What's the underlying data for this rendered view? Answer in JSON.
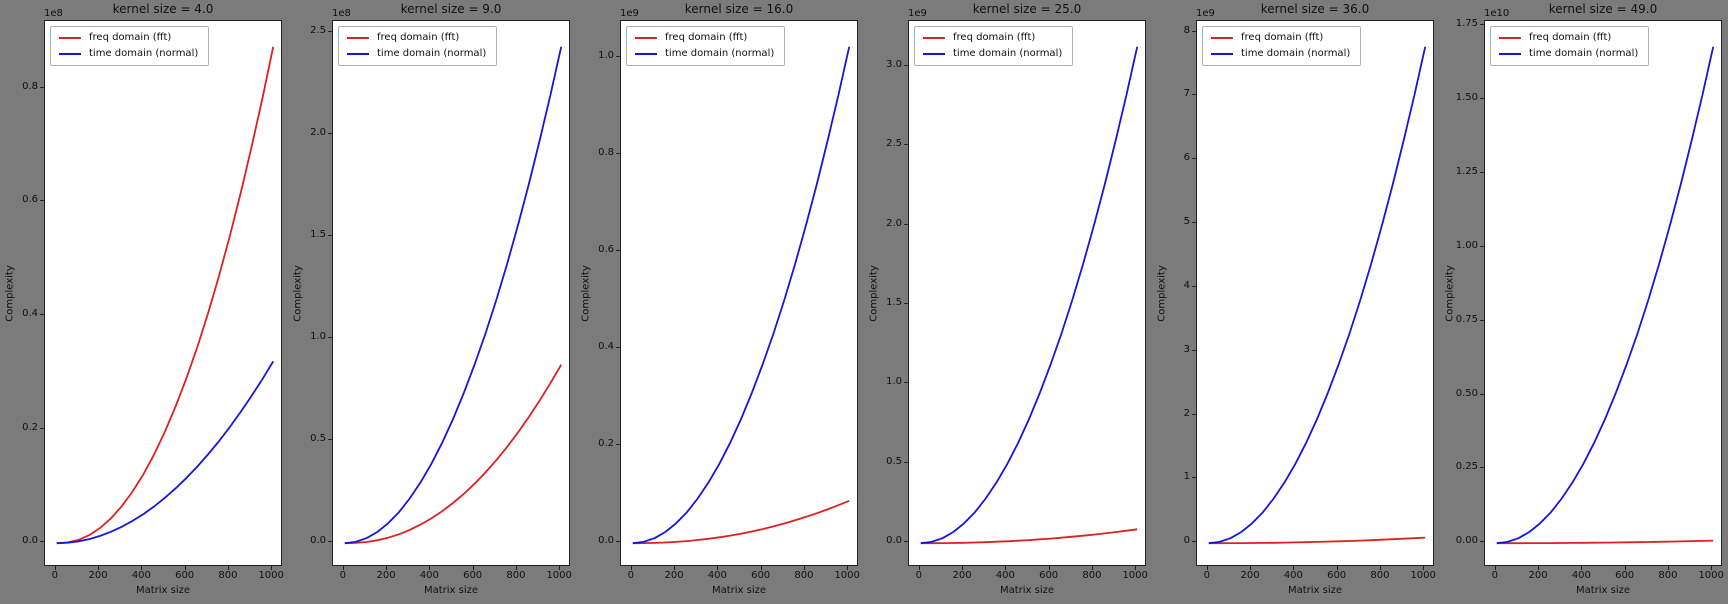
{
  "figure": {
    "background_color": "#7b7b7b",
    "plot_background_color": "#ffffff",
    "text_color": "#111111",
    "series_colors": {
      "fft": "#dd2020",
      "normal": "#1616dd"
    }
  },
  "chart_data": [
    {
      "type": "line",
      "kernel_size": "4.0",
      "title": "kernel size = 4.0",
      "xlabel": "Matrix size",
      "ylabel": "Complexity",
      "scale_label": "1e8",
      "legend_position": "upper left",
      "xticks": {
        "values": [
          0,
          200,
          400,
          600,
          800,
          1000
        ],
        "labels": [
          "0",
          "200",
          "400",
          "600",
          "800",
          "1000"
        ]
      },
      "yticks": {
        "values": [
          0,
          20000000,
          40000000,
          60000000,
          80000000
        ],
        "labels": [
          "0.0",
          "0.2",
          "0.4",
          "0.6",
          "0.8"
        ]
      },
      "x": [
        0,
        50,
        100,
        150,
        200,
        250,
        300,
        350,
        400,
        450,
        500,
        550,
        600,
        650,
        700,
        750,
        800,
        850,
        900,
        950,
        1000
      ],
      "series": [
        {
          "id": "fft",
          "name": "freq domain (fft)",
          "color": "#dd2020",
          "values": [
            0,
            124000,
            583000,
            1427000,
            2682000,
            4366000,
            6494000,
            9079000,
            12130000,
            15650000,
            19660000,
            24150000,
            29140000,
            34630000,
            40610000,
            47120000,
            54140000,
            61660000,
            69720000,
            78300000,
            87400000
          ]
        },
        {
          "id": "normal",
          "name": "time domain (normal)",
          "color": "#1616dd",
          "values": [
            0,
            80000,
            320000,
            720000,
            1280000,
            2000000,
            2880000,
            3920000,
            5120000,
            6480000,
            8000000,
            9680000,
            11520000,
            13520000,
            15680000,
            18000000,
            20480000,
            23120000,
            25920000,
            28880000,
            32000000
          ]
        }
      ]
    },
    {
      "type": "line",
      "kernel_size": "9.0",
      "title": "kernel size = 9.0",
      "xlabel": "Matrix size",
      "ylabel": "Complexity",
      "scale_label": "1e8",
      "legend_position": "upper left",
      "xticks": {
        "values": [
          0,
          200,
          400,
          600,
          800,
          1000
        ],
        "labels": [
          "0",
          "200",
          "400",
          "600",
          "800",
          "1000"
        ]
      },
      "yticks": {
        "values": [
          0,
          50000000,
          100000000,
          150000000,
          200000000,
          250000000
        ],
        "labels": [
          "0.0",
          "0.5",
          "1.0",
          "1.5",
          "2.0",
          "2.5"
        ]
      },
      "x": [
        0,
        50,
        100,
        150,
        200,
        250,
        300,
        350,
        400,
        450,
        500,
        550,
        600,
        650,
        700,
        750,
        800,
        850,
        900,
        950,
        1000
      ],
      "series": [
        {
          "id": "fft",
          "name": "freq domain (fft)",
          "color": "#dd2020",
          "values": [
            0,
            124000,
            583000,
            1427000,
            2682000,
            4366000,
            6494000,
            9079000,
            12130000,
            15650000,
            19660000,
            24150000,
            29140000,
            34630000,
            40610000,
            47120000,
            54140000,
            61660000,
            69720000,
            78300000,
            87400000
          ]
        },
        {
          "id": "normal",
          "name": "time domain (normal)",
          "color": "#1616dd",
          "values": [
            0,
            607500,
            2430000,
            5467500,
            9720000,
            15187500,
            21870000,
            29767500,
            38880000,
            49207500,
            60750000,
            73507500,
            87480000,
            102667500,
            119070000,
            136687500,
            155520000,
            175567500,
            196830000,
            219307500,
            243000000
          ]
        }
      ]
    },
    {
      "type": "line",
      "kernel_size": "16.0",
      "title": "kernel size = 16.0",
      "xlabel": "Matrix size",
      "ylabel": "Complexity",
      "scale_label": "1e9",
      "legend_position": "upper left",
      "xticks": {
        "values": [
          0,
          200,
          400,
          600,
          800,
          1000
        ],
        "labels": [
          "0",
          "200",
          "400",
          "600",
          "800",
          "1000"
        ]
      },
      "yticks": {
        "values": [
          0,
          200000000,
          400000000,
          600000000,
          800000000,
          1000000000
        ],
        "labels": [
          "0.0",
          "0.2",
          "0.4",
          "0.6",
          "0.8",
          "1.0"
        ]
      },
      "x": [
        0,
        50,
        100,
        150,
        200,
        250,
        300,
        350,
        400,
        450,
        500,
        550,
        600,
        650,
        700,
        750,
        800,
        850,
        900,
        950,
        1000
      ],
      "series": [
        {
          "id": "fft",
          "name": "freq domain (fft)",
          "color": "#dd2020",
          "values": [
            0,
            124000,
            583000,
            1427000,
            2682000,
            4366000,
            6494000,
            9079000,
            12130000,
            15650000,
            19660000,
            24150000,
            29140000,
            34630000,
            40610000,
            47120000,
            54140000,
            61660000,
            69720000,
            78300000,
            87400000
          ]
        },
        {
          "id": "normal",
          "name": "time domain (normal)",
          "color": "#1616dd",
          "values": [
            0,
            2560000,
            10240000,
            23040000,
            40960000,
            64000000,
            92160000,
            125440000,
            163840000,
            207360000,
            256000000,
            309760000,
            368640000,
            432640000,
            501760000,
            576000000,
            655360000,
            739840000,
            829440000,
            924160000,
            1024000000
          ]
        }
      ]
    },
    {
      "type": "line",
      "kernel_size": "25.0",
      "title": "kernel size = 25.0",
      "xlabel": "Matrix size",
      "ylabel": "Complexity",
      "scale_label": "1e9",
      "legend_position": "upper left",
      "xticks": {
        "values": [
          0,
          200,
          400,
          600,
          800,
          1000
        ],
        "labels": [
          "0",
          "200",
          "400",
          "600",
          "800",
          "1000"
        ]
      },
      "yticks": {
        "values": [
          0,
          500000000,
          1000000000,
          1500000000,
          2000000000,
          2500000000,
          3000000000
        ],
        "labels": [
          "0.0",
          "0.5",
          "1.0",
          "1.5",
          "2.0",
          "2.5",
          "3.0"
        ]
      },
      "x": [
        0,
        50,
        100,
        150,
        200,
        250,
        300,
        350,
        400,
        450,
        500,
        550,
        600,
        650,
        700,
        750,
        800,
        850,
        900,
        950,
        1000
      ],
      "series": [
        {
          "id": "fft",
          "name": "freq domain (fft)",
          "color": "#dd2020",
          "values": [
            0,
            124000,
            583000,
            1427000,
            2682000,
            4366000,
            6494000,
            9079000,
            12130000,
            15650000,
            19660000,
            24150000,
            29140000,
            34630000,
            40610000,
            47120000,
            54140000,
            61660000,
            69720000,
            78300000,
            87400000
          ]
        },
        {
          "id": "normal",
          "name": "time domain (normal)",
          "color": "#1616dd",
          "values": [
            0,
            7812500,
            31250000,
            70312500,
            125000000,
            195312500,
            281250000,
            382812500,
            500000000,
            632812500,
            781250000,
            945312500,
            1125000000,
            1320312500,
            1531250000,
            1757812500,
            2000000000,
            2257812500,
            2531250000,
            2820312500,
            3125000000
          ]
        }
      ]
    },
    {
      "type": "line",
      "kernel_size": "36.0",
      "title": "kernel size = 36.0",
      "xlabel": "Matrix size",
      "ylabel": "Complexity",
      "scale_label": "1e9",
      "legend_position": "upper left",
      "xticks": {
        "values": [
          0,
          200,
          400,
          600,
          800,
          1000
        ],
        "labels": [
          "0",
          "200",
          "400",
          "600",
          "800",
          "1000"
        ]
      },
      "yticks": {
        "values": [
          0,
          1000000000,
          2000000000,
          3000000000,
          4000000000,
          5000000000,
          6000000000,
          7000000000,
          8000000000
        ],
        "labels": [
          "0",
          "1",
          "2",
          "3",
          "4",
          "5",
          "6",
          "7",
          "8"
        ]
      },
      "x": [
        0,
        50,
        100,
        150,
        200,
        250,
        300,
        350,
        400,
        450,
        500,
        550,
        600,
        650,
        700,
        750,
        800,
        850,
        900,
        950,
        1000
      ],
      "series": [
        {
          "id": "fft",
          "name": "freq domain (fft)",
          "color": "#dd2020",
          "values": [
            0,
            124000,
            583000,
            1427000,
            2682000,
            4366000,
            6494000,
            9079000,
            12130000,
            15650000,
            19660000,
            24150000,
            29140000,
            34630000,
            40610000,
            47120000,
            54140000,
            61660000,
            69720000,
            78300000,
            87400000
          ]
        },
        {
          "id": "normal",
          "name": "time domain (normal)",
          "color": "#1616dd",
          "values": [
            0,
            19440000,
            77760000,
            174960000,
            311040000,
            486000000,
            699840000,
            952560000,
            1244160000,
            1574640000,
            1944000000,
            2352240000,
            2799360000,
            3285360000,
            3810240000,
            4374000000,
            4976640000,
            5618160000,
            6298560000,
            7017840000,
            7776000000
          ]
        }
      ]
    },
    {
      "type": "line",
      "kernel_size": "49.0",
      "title": "kernel size = 49.0",
      "xlabel": "Matrix size",
      "ylabel": "Complexity",
      "scale_label": "1e10",
      "legend_position": "upper left",
      "xticks": {
        "values": [
          0,
          200,
          400,
          600,
          800,
          1000
        ],
        "labels": [
          "0",
          "200",
          "400",
          "600",
          "800",
          "1000"
        ]
      },
      "yticks": {
        "values": [
          0,
          2500000000,
          5000000000,
          7500000000,
          10000000000,
          12500000000,
          15000000000,
          17500000000
        ],
        "labels": [
          "0.00",
          "0.25",
          "0.50",
          "0.75",
          "1.00",
          "1.25",
          "1.50",
          "1.75"
        ]
      },
      "x": [
        0,
        50,
        100,
        150,
        200,
        250,
        300,
        350,
        400,
        450,
        500,
        550,
        600,
        650,
        700,
        750,
        800,
        850,
        900,
        950,
        1000
      ],
      "series": [
        {
          "id": "fft",
          "name": "freq domain (fft)",
          "color": "#dd2020",
          "values": [
            0,
            124000,
            583000,
            1427000,
            2682000,
            4366000,
            6494000,
            9079000,
            12130000,
            15650000,
            19660000,
            24150000,
            29140000,
            34630000,
            40610000,
            47120000,
            54140000,
            61660000,
            69720000,
            78300000,
            87400000
          ]
        },
        {
          "id": "normal",
          "name": "time domain (normal)",
          "color": "#1616dd",
          "values": [
            0,
            42017500,
            168070000,
            378157500,
            672280000,
            1050437500,
            1512630000,
            2058857500,
            2689120000,
            3403417500,
            4201750000,
            5084117500,
            6050520000,
            7100957500,
            8235430000,
            9453937500,
            10756480000,
            12143057500,
            13613670000,
            15168317500,
            16807000000
          ]
        }
      ]
    }
  ]
}
